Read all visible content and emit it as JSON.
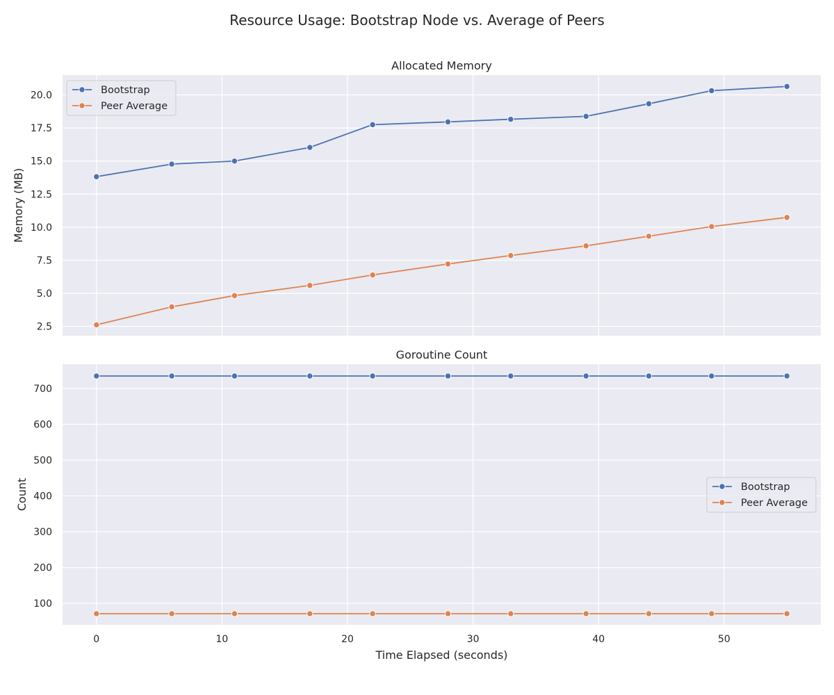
{
  "suptitle": "Resource Usage: Bootstrap Node vs. Average of Peers",
  "chart_data": [
    {
      "type": "line",
      "title": "Allocated Memory",
      "xlabel": "",
      "ylabel": "Memory (MB)",
      "x": [
        0,
        6,
        11,
        17,
        22,
        28,
        33,
        39,
        44,
        49,
        55
      ],
      "xlim": [
        -2.7,
        57.7
      ],
      "ylim": [
        1.8,
        21.5
      ],
      "x_ticks": [
        0,
        10,
        20,
        30,
        40,
        50
      ],
      "x_tick_labels_visible": false,
      "y_ticks": [
        2.5,
        5.0,
        7.5,
        10.0,
        12.5,
        15.0,
        17.5,
        20.0
      ],
      "y_tick_labels": [
        "2.5",
        "5.0",
        "7.5",
        "10.0",
        "12.5",
        "15.0",
        "17.5",
        "20.0"
      ],
      "grid": true,
      "legend_position": "upper-left",
      "series": [
        {
          "name": "Bootstrap",
          "color": "#4c72b0",
          "marker": "circle",
          "values": [
            13.82,
            14.77,
            15.0,
            16.03,
            17.75,
            17.96,
            18.16,
            18.38,
            19.33,
            20.32,
            20.64
          ]
        },
        {
          "name": "Peer Average",
          "color": "#dd8452",
          "marker": "circle",
          "values": [
            2.62,
            3.98,
            4.83,
            5.6,
            6.39,
            7.22,
            7.86,
            8.59,
            9.32,
            10.05,
            10.74
          ]
        }
      ]
    },
    {
      "type": "line",
      "title": "Goroutine Count",
      "xlabel": "Time Elapsed (seconds)",
      "ylabel": "Count",
      "x": [
        0,
        6,
        11,
        17,
        22,
        28,
        33,
        39,
        44,
        49,
        55
      ],
      "xlim": [
        -2.7,
        57.7
      ],
      "ylim": [
        40,
        768
      ],
      "x_ticks": [
        0,
        10,
        20,
        30,
        40,
        50
      ],
      "x_tick_labels": [
        "0",
        "10",
        "20",
        "30",
        "40",
        "50"
      ],
      "y_ticks": [
        100,
        200,
        300,
        400,
        500,
        600,
        700
      ],
      "y_tick_labels": [
        "100",
        "200",
        "300",
        "400",
        "500",
        "600",
        "700"
      ],
      "grid": true,
      "legend_position": "center-right",
      "series": [
        {
          "name": "Bootstrap",
          "color": "#4c72b0",
          "marker": "circle",
          "values": [
            735,
            735,
            735,
            735,
            735,
            735,
            735,
            735,
            735,
            735,
            735
          ]
        },
        {
          "name": "Peer Average",
          "color": "#dd8452",
          "marker": "circle",
          "values": [
            71,
            71,
            71,
            71,
            71,
            71,
            71,
            71,
            71,
            71,
            71
          ]
        }
      ]
    }
  ],
  "style": {
    "plot_background": "#eaeaf2",
    "grid_color": "#ffffff",
    "text_color": "#262626"
  }
}
